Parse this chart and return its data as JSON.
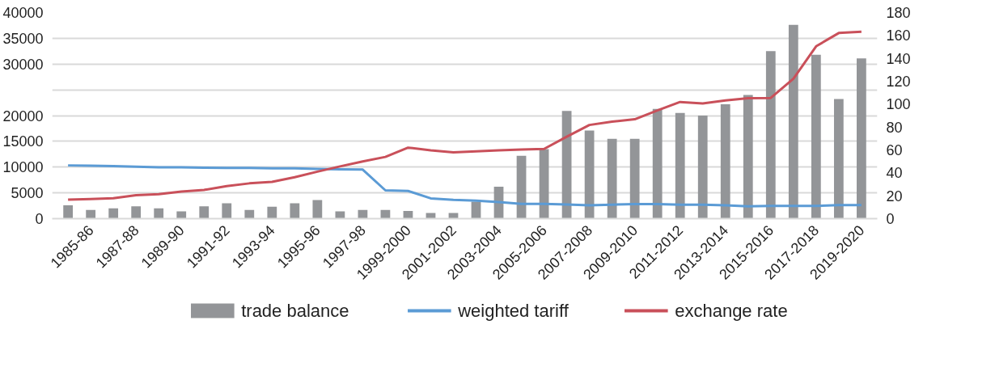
{
  "chart_data": {
    "type": "bar",
    "categories": [
      null,
      "1985-86",
      null,
      "1987-88",
      null,
      "1989-90",
      null,
      "1991-92",
      null,
      "1993-94",
      null,
      "1995-96",
      null,
      "1997-98",
      null,
      "1999-2000",
      null,
      "2001-2002",
      null,
      "2003-2004",
      null,
      "2005-2006",
      null,
      "2007-2008",
      null,
      "2009-2010",
      null,
      "2011-2012",
      null,
      "2013-2014",
      null,
      "2015-2016",
      null,
      "2017-2018",
      null,
      "2019-2020"
    ],
    "series": [
      {
        "name": "trade balance",
        "color": "#939598",
        "values": [
          2600,
          1700,
          2000,
          2400,
          2000,
          1400,
          2400,
          3000,
          1700,
          2300,
          3000,
          3600,
          1400,
          1700,
          1700,
          1500,
          1100,
          1100,
          3300,
          6200,
          12200,
          13500,
          20900,
          17100,
          15500,
          15500,
          21300,
          20500,
          20000,
          22200,
          24000,
          32500,
          37600,
          31800,
          23200,
          31100
        ]
      },
      {
        "name": "weighted tariff",
        "type": "line",
        "axis": "y2",
        "color": "#5b9bd5",
        "values": [
          46.5,
          46.3,
          45.8,
          45.4,
          44.9,
          44.9,
          44.5,
          44.3,
          44.3,
          43.9,
          43.9,
          43.4,
          43.0,
          42.8,
          24.7,
          24.2,
          17.7,
          16.4,
          15.7,
          14.4,
          12.9,
          12.9,
          12.4,
          11.6,
          12.2,
          12.7,
          12.7,
          12.2,
          12.2,
          11.6,
          10.7,
          11.1,
          11.1,
          11.1,
          11.8,
          11.8
        ]
      },
      {
        "name": "exchange rate",
        "type": "line",
        "axis": "y2",
        "color": "#c9505a",
        "values": [
          16.6,
          17.2,
          17.9,
          20.5,
          21.4,
          23.6,
          25.1,
          28.4,
          30.8,
          32.1,
          36.2,
          41.0,
          45.6,
          50.0,
          53.9,
          62.0,
          59.6,
          57.8,
          58.7,
          59.6,
          60.4,
          60.9,
          71.6,
          81.8,
          84.7,
          86.8,
          94.5,
          101.9,
          100.6,
          103.2,
          105.2,
          105.4,
          122.2,
          150.5,
          162.1,
          163.2
        ]
      }
    ],
    "ylim": [
      0,
      40000
    ],
    "yticks": [
      0,
      5000,
      10000,
      15000,
      20000,
      {
        "value": 25000,
        "label": null
      },
      30000,
      35000,
      40000
    ],
    "y2lim": [
      0,
      180
    ],
    "y2ticks": [
      0,
      20,
      40,
      60,
      80,
      100,
      120,
      140,
      160,
      180
    ],
    "grid": "y",
    "legend": "bottom"
  }
}
